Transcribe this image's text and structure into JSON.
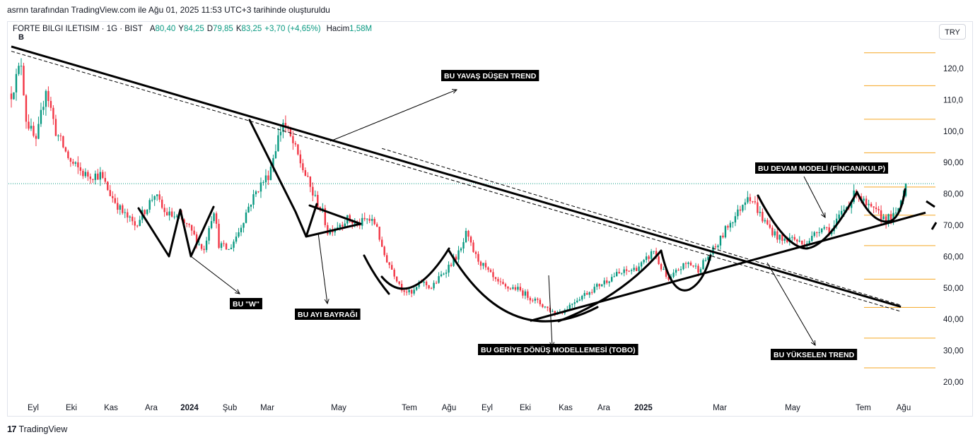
{
  "header": {
    "caption": "asrnn tarafından TradingView.com ile Ağu 01, 2025 11:53 UTC+3 tarihinde oluşturuldu"
  },
  "legend": {
    "symbol": "FORTE BILGI ILETISIM · 1G · BIST",
    "open_label": "A",
    "open_value": "80,40",
    "high_label": "Y",
    "high_value": "84,25",
    "low_label": "D",
    "low_value": "79,85",
    "close_label": "K",
    "close_value": "83,25",
    "change": "+3,70 (+4,65%)",
    "volume_label": "Hacim",
    "volume_value": "1,58M"
  },
  "currency_button": "TRY",
  "marker_b": "B",
  "footer": {
    "brand": "TradingView",
    "logo_glyph": "17"
  },
  "colors": {
    "up": "#089981",
    "down": "#f23645",
    "fib": "#f5a623",
    "ink": "#000000"
  },
  "chart_data": {
    "type": "candlestick",
    "symbol": "FORTE BILGI ILETISIM",
    "interval": "1G",
    "currency": "TRY",
    "y_axis": {
      "ticks": [
        "120,0",
        "110,0",
        "100,0",
        "90,00",
        "80,00",
        "70,00",
        "60,00",
        "50,00",
        "40,00",
        "30,00",
        "20,00"
      ],
      "values": [
        120,
        110,
        100,
        90,
        80,
        70,
        60,
        50,
        40,
        30,
        20
      ],
      "ylim": [
        15,
        128
      ]
    },
    "x_axis": {
      "ticks": [
        "Eyl",
        "Eki",
        "Kas",
        "Ara",
        "2024",
        "Şub",
        "Mar",
        "May",
        "Tem",
        "Ağu",
        "Eyl",
        "Eki",
        "Kas",
        "Ara",
        "2025",
        "Mar",
        "May",
        "Tem",
        "Ağu"
      ],
      "bold_ticks": [
        "2024",
        "2025"
      ]
    },
    "last_price": 83.25,
    "price_path": [
      [
        0,
        112
      ],
      [
        4,
        122
      ],
      [
        6,
        104
      ],
      [
        10,
        96
      ],
      [
        14,
        114
      ],
      [
        18,
        100
      ],
      [
        24,
        90
      ],
      [
        30,
        86
      ],
      [
        36,
        86
      ],
      [
        40,
        80
      ],
      [
        45,
        74
      ],
      [
        50,
        70
      ],
      [
        55,
        76
      ],
      [
        58,
        80
      ],
      [
        62,
        74
      ],
      [
        68,
        72
      ],
      [
        72,
        69
      ],
      [
        76,
        64
      ],
      [
        78,
        62
      ],
      [
        80,
        70
      ],
      [
        82,
        75
      ],
      [
        84,
        64
      ],
      [
        88,
        62
      ],
      [
        92,
        68
      ],
      [
        96,
        76
      ],
      [
        100,
        82
      ],
      [
        104,
        86
      ],
      [
        108,
        98
      ],
      [
        110,
        103
      ],
      [
        114,
        96
      ],
      [
        118,
        88
      ],
      [
        122,
        80
      ],
      [
        126,
        74
      ],
      [
        128,
        68
      ],
      [
        132,
        70
      ],
      [
        136,
        72
      ],
      [
        140,
        70
      ],
      [
        144,
        72
      ],
      [
        148,
        70
      ],
      [
        150,
        62
      ],
      [
        154,
        56
      ],
      [
        158,
        50
      ],
      [
        162,
        48
      ],
      [
        166,
        52
      ],
      [
        170,
        50
      ],
      [
        174,
        54
      ],
      [
        178,
        58
      ],
      [
        182,
        62
      ],
      [
        184,
        67
      ],
      [
        188,
        60
      ],
      [
        192,
        56
      ],
      [
        196,
        52
      ],
      [
        200,
        50
      ],
      [
        204,
        50
      ],
      [
        208,
        48
      ],
      [
        212,
        46
      ],
      [
        216,
        44
      ],
      [
        220,
        42
      ],
      [
        224,
        43
      ],
      [
        228,
        46
      ],
      [
        232,
        48
      ],
      [
        236,
        50
      ],
      [
        240,
        52
      ],
      [
        244,
        54
      ],
      [
        248,
        55
      ],
      [
        252,
        56
      ],
      [
        256,
        58
      ],
      [
        260,
        62
      ],
      [
        262,
        58
      ],
      [
        266,
        52
      ],
      [
        270,
        56
      ],
      [
        274,
        58
      ],
      [
        278,
        56
      ],
      [
        282,
        60
      ],
      [
        286,
        64
      ],
      [
        290,
        70
      ],
      [
        294,
        74
      ],
      [
        298,
        80
      ],
      [
        300,
        78
      ],
      [
        304,
        72
      ],
      [
        308,
        68
      ],
      [
        312,
        65
      ],
      [
        316,
        66
      ],
      [
        320,
        64
      ],
      [
        324,
        66
      ],
      [
        328,
        70
      ],
      [
        332,
        68
      ],
      [
        336,
        74
      ],
      [
        340,
        78
      ],
      [
        342,
        81
      ],
      [
        346,
        76
      ],
      [
        350,
        74
      ],
      [
        354,
        72
      ],
      [
        358,
        73
      ],
      [
        360,
        78
      ],
      [
        362,
        83
      ]
    ],
    "fib_levels": [
      125,
      114.5,
      103.8,
      93.1,
      82.2,
      73.2,
      63.5,
      52.8,
      43.8,
      34,
      24.5
    ],
    "trendlines": [
      {
        "name": "descending-main",
        "from": [
          0,
          127
        ],
        "to": [
          360,
          44
        ],
        "style": "solid"
      },
      {
        "name": "descending-channel",
        "from": [
          0,
          125.5
        ],
        "to": [
          360,
          42.5
        ],
        "style": "dashed"
      },
      {
        "name": "descending-channel-2",
        "from": [
          150,
          94.5
        ],
        "to": [
          360,
          44.5
        ],
        "style": "dashed"
      },
      {
        "name": "rising-support",
        "from": [
          210,
          39.5
        ],
        "to": [
          370,
          74
        ],
        "style": "solid"
      }
    ],
    "annotations": [
      "BU YAVAŞ DÜŞEN TREND",
      "BU \"W\"",
      "BU AYI BAYRAĞI",
      "BU  GERİYE DÖNÜŞ MODELLEMESİ (TOBO)",
      "BU DEVAM MODELİ (FİNCAN/KULP)",
      "BU YÜKSELEN TREND"
    ]
  }
}
